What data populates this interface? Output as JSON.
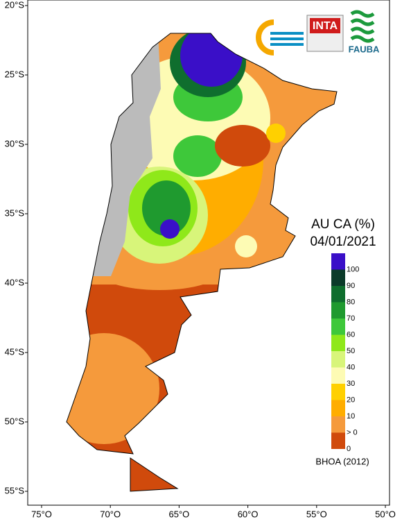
{
  "map": {
    "lat_labels": [
      "20°S",
      "25°S",
      "30°S",
      "35°S",
      "40°S",
      "45°S",
      "50°S",
      "55°S"
    ],
    "lon_labels": [
      "75°O",
      "70°O",
      "65°O",
      "60°O",
      "55°O",
      "50°O"
    ],
    "logos": {
      "inta": "INTA",
      "fauba": "FAUBA"
    },
    "legend": {
      "title": "AU CA (%)",
      "date": "04/01/2021",
      "classes": [
        {
          "label": "100",
          "color": "#3a0fc8"
        },
        {
          "label": "90",
          "color": "#0b3b2a"
        },
        {
          "label": "80",
          "color": "#0f6e2e"
        },
        {
          "label": "70",
          "color": "#1f9a2f"
        },
        {
          "label": "60",
          "color": "#3ec83a"
        },
        {
          "label": "50",
          "color": "#8fe81a"
        },
        {
          "label": "40",
          "color": "#d8f57a"
        },
        {
          "label": "30",
          "color": "#fdfbb4"
        },
        {
          "label": "20",
          "color": "#ffd000"
        },
        {
          "label": "10",
          "color": "#ffad00"
        },
        {
          "label": "> 0",
          "color": "#f59a3c"
        },
        {
          "label": "0",
          "color": "#d04a0c"
        }
      ],
      "source": "BHOA (2012)"
    }
  }
}
